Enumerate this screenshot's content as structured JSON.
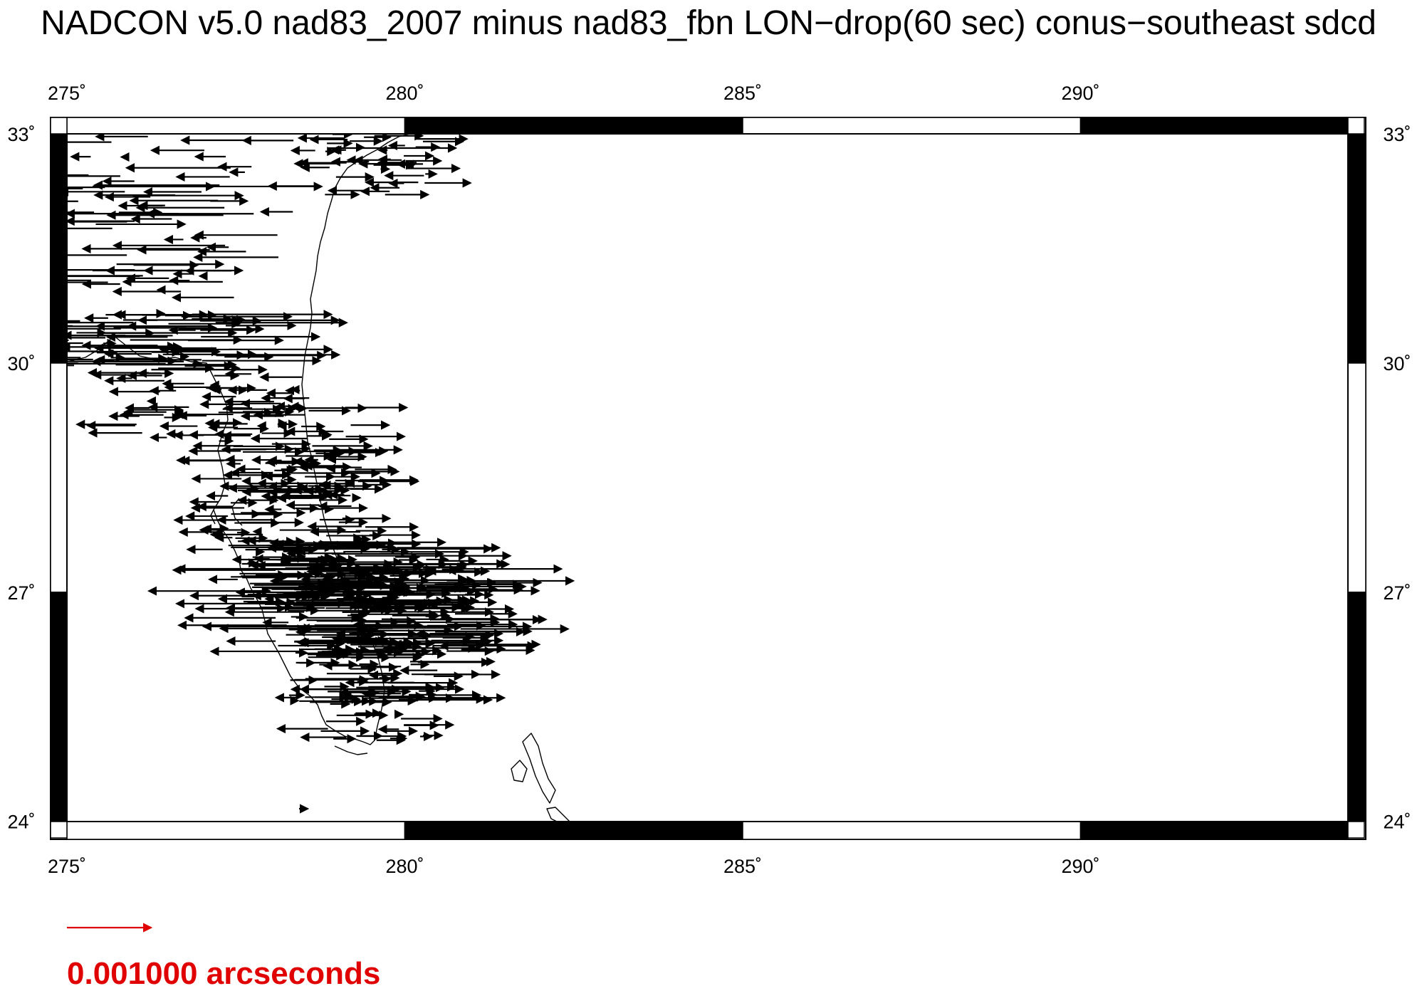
{
  "title": "NADCON v5.0 nad83_2007 minus nad83_fbn LON−drop(60 sec) conus−southeast sdcd",
  "map": {
    "projection": "plate-carree",
    "lon_range": [
      275,
      294.5
    ],
    "lat_range": [
      24,
      33
    ],
    "x_ticks": [
      {
        "value": 275,
        "label": "275˚"
      },
      {
        "value": 280,
        "label": "280˚"
      },
      {
        "value": 285,
        "label": "285˚"
      },
      {
        "value": 290,
        "label": "290˚"
      }
    ],
    "y_ticks": [
      {
        "value": 33,
        "label": "33˚"
      },
      {
        "value": 30,
        "label": "30˚"
      },
      {
        "value": 27,
        "label": "27˚"
      },
      {
        "value": 24,
        "label": "24˚"
      }
    ],
    "frame_segments_lon": [
      275,
      280,
      285,
      290,
      294.5
    ],
    "frame_segments_lat": [
      24,
      27,
      30,
      33
    ],
    "vector_color": "#000000",
    "coast_color": "#000000"
  },
  "scale": {
    "label": "0.001000 arcseconds",
    "color": "#e00000"
  }
}
